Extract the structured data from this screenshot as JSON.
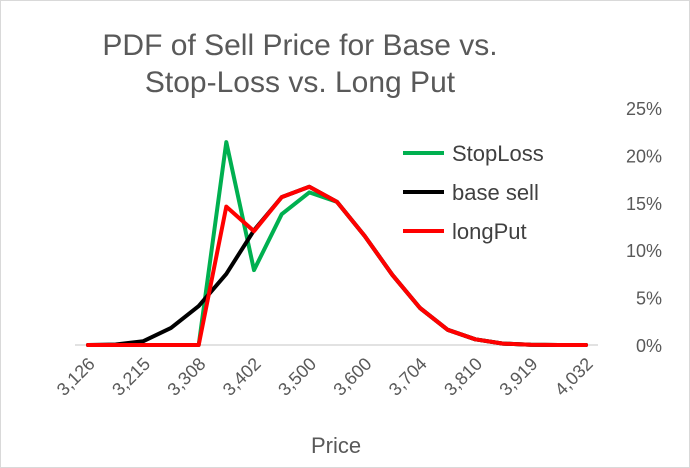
{
  "chart_data": {
    "type": "line",
    "title_lines": [
      "PDF of Sell Price for Base vs.",
      "Stop-Loss vs. Long Put"
    ],
    "xlabel": "Price",
    "ylabel": "",
    "x": [
      3126,
      3170,
      3215,
      3262,
      3308,
      3355,
      3402,
      3451,
      3500,
      3550,
      3600,
      3652,
      3704,
      3757,
      3810,
      3864,
      3919,
      3975,
      4032
    ],
    "x_tick_labels": [
      "3,126",
      "3,215",
      "3,308",
      "3,402",
      "3,500",
      "3,600",
      "3,704",
      "3,810",
      "3,919",
      "4,032"
    ],
    "y_tick_labels": [
      "0%",
      "5%",
      "10%",
      "15%",
      "20%",
      "25%"
    ],
    "ylim": [
      0,
      25
    ],
    "y_axis_position": "right",
    "grid": false,
    "legend_position": "right",
    "series": [
      {
        "name": "StopLoss",
        "color": "#00b050",
        "values": [
          0,
          0,
          0,
          0,
          0,
          21.4,
          7.9,
          13.8,
          16.1,
          15.1,
          11.5,
          7.4,
          3.9,
          1.6,
          0.6,
          0.15,
          0.03,
          0,
          0
        ]
      },
      {
        "name": "base sell",
        "color": "#000000",
        "values": [
          0,
          0.05,
          0.4,
          1.8,
          4.1,
          7.5,
          12.1,
          15.6,
          16.7,
          15.1,
          11.5,
          7.4,
          3.9,
          1.6,
          0.6,
          0.15,
          0.03,
          0,
          0
        ]
      },
      {
        "name": "longPut",
        "color": "#ff0000",
        "values": [
          0,
          0,
          0,
          0,
          0,
          14.6,
          12.0,
          15.6,
          16.7,
          15.1,
          11.5,
          7.4,
          3.9,
          1.6,
          0.6,
          0.15,
          0.03,
          0,
          0
        ]
      }
    ]
  }
}
